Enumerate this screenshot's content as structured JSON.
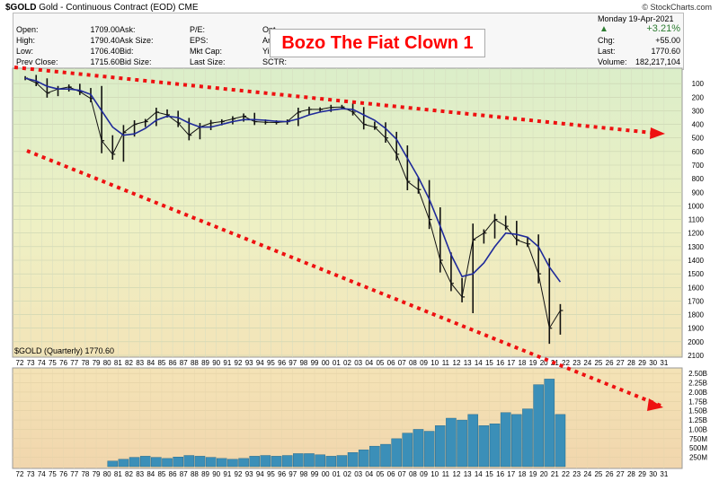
{
  "header": {
    "symbol": "$GOLD",
    "name": "Gold - Continuous Contract (EOD)",
    "exchange": "CME",
    "brand": "© StockCharts.com",
    "date": "Monday 19-Apr-2021",
    "fields": {
      "open_label": "Open:",
      "open": "1709.00",
      "high_label": "High:",
      "high": "1790.40",
      "low_label": "Low:",
      "low": "1706.40",
      "prev_label": "Prev Close:",
      "prev": "1715.60",
      "ask_label": "Ask:",
      "asksize_label": "Ask Size:",
      "bid_label": "Bid:",
      "bidsize_label": "Bid Size:",
      "pe_label": "P/E:",
      "eps_label": "EPS:",
      "mktcap_label": "Mkt Cap:",
      "lastsize_label": "Last Size:",
      "opt_label": "Opt",
      "ann_label": "An",
      "yld_label": "Yi",
      "sctr_label": "SCTR:",
      "change_pct": "+3.21%",
      "chg_label": "Chg:",
      "chg": "+55.00",
      "last_label": "Last:",
      "last": "1770.60",
      "volume_label": "Volume:",
      "volume": "182,217,104"
    },
    "up_color": "#2e7d32"
  },
  "annotation": "Bozo The Fiat Clown 1",
  "price_tag": "$GOLD (Quarterly) 1770.60",
  "chart_data": [
    {
      "type": "line",
      "note": "Quarterly gold price with inverted price axis",
      "yaxis_inverted": true,
      "ylim": [
        2100,
        0
      ],
      "yticks": [
        100,
        200,
        300,
        400,
        500,
        600,
        700,
        800,
        900,
        1000,
        1100,
        1200,
        1300,
        1400,
        1500,
        1600,
        1700,
        1800,
        1900,
        2000,
        2100
      ],
      "xticks": [
        "72",
        "73",
        "74",
        "75",
        "76",
        "77",
        "78",
        "79",
        "80",
        "81",
        "82",
        "83",
        "84",
        "85",
        "86",
        "87",
        "88",
        "89",
        "90",
        "91",
        "92",
        "93",
        "94",
        "95",
        "96",
        "97",
        "98",
        "99",
        "00",
        "01",
        "02",
        "03",
        "04",
        "05",
        "06",
        "07",
        "08",
        "09",
        "10",
        "11",
        "12",
        "13",
        "14",
        "15",
        "16",
        "17",
        "18",
        "19",
        "20",
        "21",
        "22",
        "23",
        "24",
        "25",
        "26",
        "27",
        "28",
        "29",
        "30",
        "31"
      ],
      "x": [
        1972,
        1973,
        1974,
        1975,
        1976,
        1977,
        1978,
        1979,
        1980,
        1981,
        1982,
        1983,
        1984,
        1985,
        1986,
        1987,
        1988,
        1989,
        1990,
        1991,
        1992,
        1993,
        1994,
        1995,
        1996,
        1997,
        1998,
        1999,
        2000,
        2001,
        2002,
        2003,
        2004,
        2005,
        2006,
        2007,
        2008,
        2009,
        2010,
        2011,
        2012,
        2013,
        2014,
        2015,
        2016,
        2017,
        2018,
        2019,
        2020,
        2021
      ],
      "price": [
        60,
        95,
        170,
        140,
        125,
        160,
        210,
        520,
        620,
        460,
        400,
        380,
        310,
        330,
        390,
        480,
        420,
        390,
        380,
        360,
        340,
        380,
        385,
        386,
        380,
        310,
        290,
        290,
        275,
        272,
        310,
        400,
        420,
        500,
        620,
        820,
        880,
        1100,
        1400,
        1570,
        1670,
        1250,
        1200,
        1100,
        1150,
        1250,
        1280,
        1500,
        1900,
        1770
      ],
      "ma": [
        60,
        80,
        120,
        140,
        140,
        150,
        180,
        300,
        420,
        480,
        470,
        430,
        370,
        340,
        350,
        390,
        420,
        420,
        400,
        380,
        365,
        365,
        370,
        378,
        380,
        360,
        330,
        310,
        295,
        285,
        290,
        330,
        370,
        430,
        510,
        650,
        790,
        950,
        1150,
        1360,
        1520,
        1500,
        1420,
        1300,
        1200,
        1210,
        1230,
        1300,
        1450,
        1560
      ]
    },
    {
      "type": "bar",
      "yticks": [
        "2.50B",
        "2.25B",
        "2.00B",
        "1.75B",
        "1.50B",
        "1.25B",
        "1.00B",
        "750M",
        "500M",
        "250M"
      ],
      "ylim": [
        0,
        2.6
      ],
      "x": [
        1980,
        1981,
        1982,
        1983,
        1984,
        1985,
        1986,
        1987,
        1988,
        1989,
        1990,
        1991,
        1992,
        1993,
        1994,
        1995,
        1996,
        1997,
        1998,
        1999,
        2000,
        2001,
        2002,
        2003,
        2004,
        2005,
        2006,
        2007,
        2008,
        2009,
        2010,
        2011,
        2012,
        2013,
        2014,
        2015,
        2016,
        2017,
        2018,
        2019,
        2020,
        2021
      ],
      "values": [
        0.15,
        0.2,
        0.25,
        0.28,
        0.25,
        0.22,
        0.26,
        0.3,
        0.28,
        0.25,
        0.22,
        0.2,
        0.22,
        0.28,
        0.3,
        0.28,
        0.3,
        0.35,
        0.35,
        0.32,
        0.28,
        0.3,
        0.38,
        0.45,
        0.55,
        0.6,
        0.75,
        0.9,
        1.0,
        0.95,
        1.1,
        1.3,
        1.25,
        1.4,
        1.1,
        1.15,
        1.45,
        1.4,
        1.55,
        2.2,
        2.35,
        1.4
      ]
    }
  ]
}
